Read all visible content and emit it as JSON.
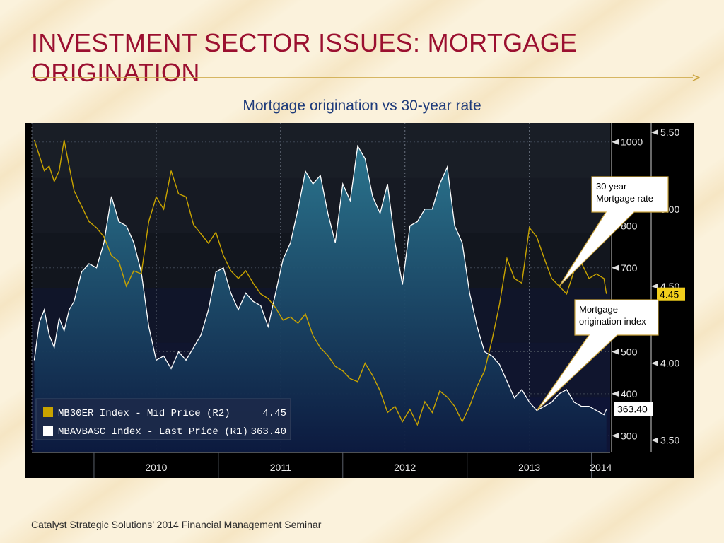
{
  "slide": {
    "title": "INVESTMENT SECTOR ISSUES:  MORTGAGE ORIGINATION",
    "subtitle": "Mortgage origination vs 30-year rate",
    "footer": "Catalyst Strategic Solutions’ 2014 Financial Management Seminar"
  },
  "colors": {
    "title": "#9b1030",
    "rule": "#c9a23a",
    "subtitle": "#1d3a7a",
    "rate_line": "#c9a400",
    "index_line": "#ffffff",
    "index_fill_top": "#2c7a94",
    "index_fill_bottom": "#0c1a3f",
    "badge_rate": "#f2cf1c"
  },
  "chart_data": {
    "type": "line",
    "x_ticks": [
      "2010",
      "2011",
      "2012",
      "2013",
      "2014"
    ],
    "x_range": [
      2009.5,
      2014.15
    ],
    "left_axis": {
      "ticks": [],
      "range": [
        260,
        1045
      ]
    },
    "r1_axis": {
      "ticks": [
        "1000",
        "800",
        "700",
        "500",
        "400",
        "300"
      ],
      "range": [
        260,
        1045
      ]
    },
    "r2_axis": {
      "ticks": [
        "5.50",
        "5.00",
        "4.50",
        "4.00",
        "3.50"
      ],
      "range": [
        3.42,
        5.56
      ]
    },
    "grid": true,
    "series": [
      {
        "name": "MB30ER Index - Mid Price (R2)",
        "axis": "R2",
        "last_value": "4.45",
        "x": [
          2009.52,
          2009.56,
          2009.6,
          2009.64,
          2009.68,
          2009.72,
          2009.76,
          2009.8,
          2009.84,
          2009.9,
          2009.96,
          2010.02,
          2010.08,
          2010.14,
          2010.2,
          2010.26,
          2010.32,
          2010.38,
          2010.44,
          2010.5,
          2010.56,
          2010.62,
          2010.68,
          2010.74,
          2010.8,
          2010.86,
          2010.92,
          2010.98,
          2011.04,
          2011.1,
          2011.16,
          2011.22,
          2011.28,
          2011.34,
          2011.4,
          2011.46,
          2011.52,
          2011.58,
          2011.64,
          2011.7,
          2011.76,
          2011.82,
          2011.88,
          2011.94,
          2012.0,
          2012.06,
          2012.12,
          2012.18,
          2012.24,
          2012.3,
          2012.36,
          2012.42,
          2012.48,
          2012.54,
          2012.6,
          2012.66,
          2012.72,
          2012.78,
          2012.84,
          2012.9,
          2012.96,
          2013.02,
          2013.08,
          2013.14,
          2013.2,
          2013.26,
          2013.32,
          2013.38,
          2013.44,
          2013.5,
          2013.56,
          2013.62,
          2013.68,
          2013.74,
          2013.8,
          2013.86,
          2013.92,
          2013.98,
          2014.04,
          2014.1,
          2014.12
        ],
        "y": [
          5.45,
          5.35,
          5.25,
          5.28,
          5.18,
          5.25,
          5.45,
          5.28,
          5.12,
          5.02,
          4.92,
          4.88,
          4.82,
          4.7,
          4.66,
          4.5,
          4.6,
          4.58,
          4.92,
          5.08,
          5.0,
          5.25,
          5.1,
          5.08,
          4.9,
          4.84,
          4.78,
          4.85,
          4.7,
          4.6,
          4.55,
          4.6,
          4.52,
          4.45,
          4.42,
          4.36,
          4.28,
          4.3,
          4.26,
          4.32,
          4.18,
          4.1,
          4.05,
          3.98,
          3.95,
          3.9,
          3.88,
          4.0,
          3.92,
          3.82,
          3.68,
          3.72,
          3.62,
          3.7,
          3.6,
          3.75,
          3.68,
          3.82,
          3.78,
          3.72,
          3.62,
          3.72,
          3.85,
          3.95,
          4.15,
          4.38,
          4.68,
          4.55,
          4.52,
          4.88,
          4.82,
          4.68,
          4.55,
          4.5,
          4.45,
          4.6,
          4.65,
          4.55,
          4.58,
          4.55,
          4.45
        ]
      },
      {
        "name": "MBAVBASC Index - Last Price (R1)",
        "axis": "R1",
        "last_value": "363.40",
        "x": [
          2009.52,
          2009.56,
          2009.6,
          2009.64,
          2009.68,
          2009.72,
          2009.76,
          2009.8,
          2009.84,
          2009.9,
          2009.96,
          2010.02,
          2010.08,
          2010.14,
          2010.2,
          2010.26,
          2010.32,
          2010.38,
          2010.44,
          2010.5,
          2010.56,
          2010.62,
          2010.68,
          2010.74,
          2010.8,
          2010.86,
          2010.92,
          2010.98,
          2011.04,
          2011.1,
          2011.16,
          2011.22,
          2011.28,
          2011.34,
          2011.4,
          2011.46,
          2011.52,
          2011.58,
          2011.64,
          2011.7,
          2011.76,
          2011.82,
          2011.88,
          2011.94,
          2012.0,
          2012.06,
          2012.12,
          2012.18,
          2012.24,
          2012.3,
          2012.36,
          2012.42,
          2012.48,
          2012.54,
          2012.6,
          2012.66,
          2012.72,
          2012.78,
          2012.84,
          2012.9,
          2012.96,
          2013.02,
          2013.08,
          2013.14,
          2013.2,
          2013.26,
          2013.32,
          2013.38,
          2013.44,
          2013.5,
          2013.56,
          2013.62,
          2013.68,
          2013.74,
          2013.8,
          2013.86,
          2013.92,
          2013.98,
          2014.04,
          2014.1,
          2014.12
        ],
        "y": [
          480,
          570,
          600,
          540,
          510,
          580,
          550,
          600,
          620,
          690,
          710,
          700,
          760,
          870,
          810,
          800,
          760,
          690,
          560,
          480,
          490,
          460,
          500,
          480,
          510,
          540,
          600,
          690,
          700,
          640,
          600,
          640,
          620,
          610,
          560,
          640,
          720,
          760,
          840,
          930,
          900,
          920,
          830,
          760,
          900,
          860,
          990,
          960,
          870,
          830,
          900,
          760,
          660,
          800,
          810,
          840,
          840,
          900,
          940,
          800,
          760,
          640,
          560,
          500,
          490,
          470,
          430,
          390,
          410,
          380,
          360,
          370,
          380,
          400,
          410,
          380,
          370,
          370,
          360,
          350,
          363.4
        ]
      }
    ],
    "annotations": [
      {
        "text": [
          "30 year",
          "Mortgage rate"
        ],
        "target_series": 0,
        "target_x": 2013.76
      },
      {
        "text": [
          "Mortgage",
          "origination index"
        ],
        "target_series": 1,
        "target_x": 2013.58
      }
    ]
  }
}
